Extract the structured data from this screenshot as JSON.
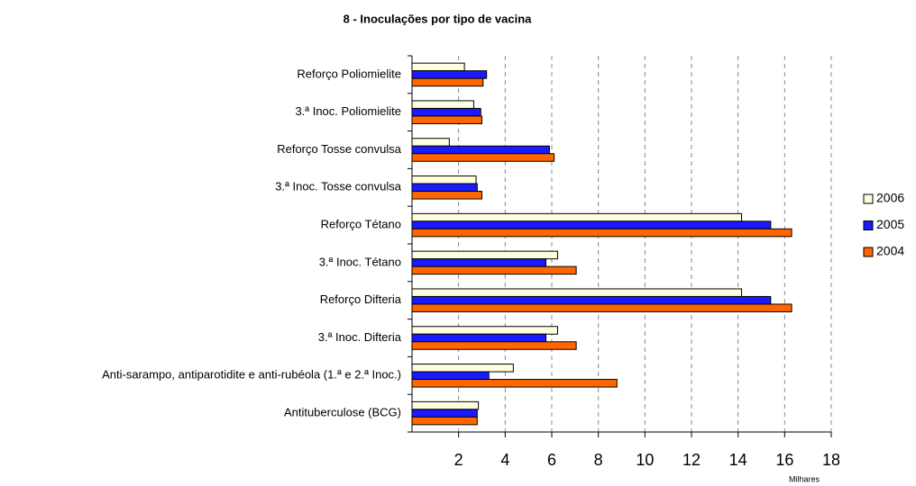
{
  "chart_data": {
    "type": "hbar",
    "title": "8 - Inoculações por tipo de vacina",
    "x_label": "Milhares",
    "categories": [
      "Reforço Poliomielite",
      "3.ª Inoc. Poliomielite",
      "Reforço Tosse convulsa",
      "3.ª Inoc. Tosse convulsa",
      "Reforço Tétano",
      "3.ª Inoc. Tétano",
      "Reforço Difteria",
      "3.ª Inoc. Difteria",
      "Anti-sarampo, antiparotidite e anti-rubéola (1.ª e 2.ª Inoc.)",
      "Antituberculose (BCG)"
    ],
    "series": [
      {
        "name": "2006",
        "color": "#ffffe0",
        "values": [
          2.25,
          2.65,
          1.6,
          2.75,
          14.15,
          6.25,
          14.15,
          6.25,
          4.35,
          2.85
        ]
      },
      {
        "name": "2005",
        "color": "#1a1aff",
        "values": [
          3.2,
          2.95,
          5.9,
          2.8,
          15.4,
          5.75,
          15.4,
          5.75,
          3.3,
          2.8
        ]
      },
      {
        "name": "2004",
        "color": "#ff6600",
        "values": [
          3.05,
          3.0,
          6.1,
          3.0,
          16.3,
          7.05,
          16.3,
          7.05,
          8.8,
          2.8
        ]
      }
    ],
    "xlim": [
      0,
      18
    ],
    "xticks": [
      2,
      4,
      6,
      8,
      10,
      12,
      14,
      16,
      18
    ],
    "grid": true,
    "legend": "right"
  }
}
